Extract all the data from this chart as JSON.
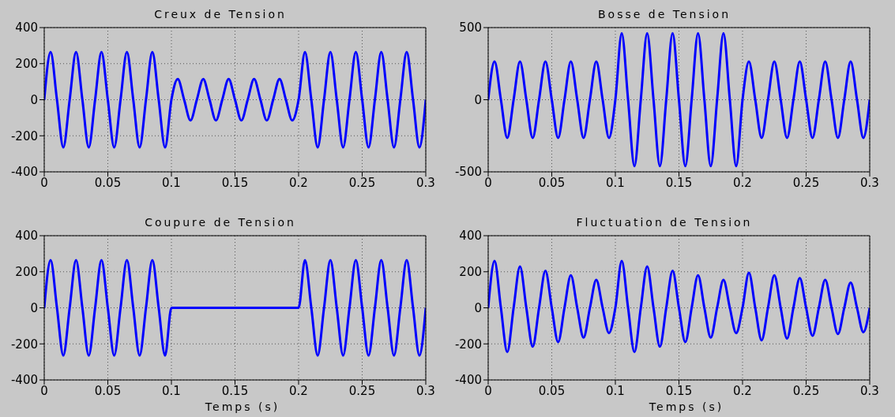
{
  "chart_data": [
    {
      "type": "line",
      "title": "Creux de Tension",
      "x": [
        0,
        0.005,
        0.01,
        0.015,
        0.02,
        0.025,
        0.03,
        0.035,
        0.04,
        0.045,
        0.05,
        0.055,
        0.06,
        0.065,
        0.07,
        0.075,
        0.08,
        0.085,
        0.09,
        0.095,
        0.1,
        0.105,
        0.11,
        0.115,
        0.12,
        0.125,
        0.13,
        0.135,
        0.14,
        0.145,
        0.15,
        0.155,
        0.16,
        0.165,
        0.17,
        0.175,
        0.18,
        0.185,
        0.19,
        0.195,
        0.2,
        0.205,
        0.21,
        0.215,
        0.22,
        0.225,
        0.23,
        0.235,
        0.24,
        0.245,
        0.25,
        0.255,
        0.26,
        0.265,
        0.27,
        0.275,
        0.28,
        0.285,
        0.29,
        0.295,
        0.3
      ],
      "values": [
        0,
        265,
        0,
        -265,
        0,
        265,
        0,
        -265,
        0,
        265,
        0,
        -265,
        0,
        265,
        0,
        -265,
        0,
        265,
        0,
        -265,
        0,
        115,
        0,
        -115,
        0,
        115,
        0,
        -115,
        0,
        115,
        0,
        -115,
        0,
        115,
        0,
        -115,
        0,
        115,
        0,
        -115,
        0,
        265,
        0,
        -265,
        0,
        265,
        0,
        -265,
        0,
        265,
        0,
        -265,
        0,
        265,
        0,
        -265,
        0,
        265,
        0,
        -265,
        0
      ],
      "color": "#0000ff",
      "xlim": [
        0,
        0.3
      ],
      "xticks": [
        0,
        0.05,
        0.1,
        0.15,
        0.2,
        0.25,
        0.3
      ],
      "ylim": [
        -400,
        400
      ],
      "yticks": [
        -400,
        -200,
        0,
        200,
        400
      ],
      "grid": true
    },
    {
      "type": "line",
      "title": "Bosse de Tension",
      "x": [
        0,
        0.005,
        0.01,
        0.015,
        0.02,
        0.025,
        0.03,
        0.035,
        0.04,
        0.045,
        0.05,
        0.055,
        0.06,
        0.065,
        0.07,
        0.075,
        0.08,
        0.085,
        0.09,
        0.095,
        0.1,
        0.105,
        0.11,
        0.115,
        0.12,
        0.125,
        0.13,
        0.135,
        0.14,
        0.145,
        0.15,
        0.155,
        0.16,
        0.165,
        0.17,
        0.175,
        0.18,
        0.185,
        0.19,
        0.195,
        0.2,
        0.205,
        0.21,
        0.215,
        0.22,
        0.225,
        0.23,
        0.235,
        0.24,
        0.245,
        0.25,
        0.255,
        0.26,
        0.265,
        0.27,
        0.275,
        0.28,
        0.285,
        0.29,
        0.295,
        0.3
      ],
      "values": [
        0,
        265,
        0,
        -265,
        0,
        265,
        0,
        -265,
        0,
        265,
        0,
        -265,
        0,
        265,
        0,
        -265,
        0,
        265,
        0,
        -265,
        0,
        460,
        0,
        -460,
        0,
        460,
        0,
        -460,
        0,
        460,
        0,
        -460,
        0,
        460,
        0,
        -460,
        0,
        460,
        0,
        -460,
        0,
        265,
        0,
        -265,
        0,
        265,
        0,
        -265,
        0,
        265,
        0,
        -265,
        0,
        265,
        0,
        -265,
        0,
        265,
        0,
        -265,
        0
      ],
      "color": "#0000ff",
      "xlim": [
        0,
        0.3
      ],
      "xticks": [
        0,
        0.05,
        0.1,
        0.15,
        0.2,
        0.25,
        0.3
      ],
      "ylim": [
        -500,
        500
      ],
      "yticks": [
        -500,
        0,
        500
      ],
      "grid": true
    },
    {
      "type": "line",
      "title": "Coupure de Tension",
      "xlabel": "Temps (s)",
      "x": [
        0,
        0.005,
        0.01,
        0.015,
        0.02,
        0.025,
        0.03,
        0.035,
        0.04,
        0.045,
        0.05,
        0.055,
        0.06,
        0.065,
        0.07,
        0.075,
        0.08,
        0.085,
        0.09,
        0.095,
        0.1,
        0.105,
        0.11,
        0.115,
        0.12,
        0.125,
        0.13,
        0.135,
        0.14,
        0.145,
        0.15,
        0.155,
        0.16,
        0.165,
        0.17,
        0.175,
        0.18,
        0.185,
        0.19,
        0.195,
        0.2,
        0.205,
        0.21,
        0.215,
        0.22,
        0.225,
        0.23,
        0.235,
        0.24,
        0.245,
        0.25,
        0.255,
        0.26,
        0.265,
        0.27,
        0.275,
        0.28,
        0.285,
        0.29,
        0.295,
        0.3
      ],
      "values": [
        0,
        265,
        0,
        -265,
        0,
        265,
        0,
        -265,
        0,
        265,
        0,
        -265,
        0,
        265,
        0,
        -265,
        0,
        265,
        0,
        -265,
        0,
        0,
        0,
        0,
        0,
        0,
        0,
        0,
        0,
        0,
        0,
        0,
        0,
        0,
        0,
        0,
        0,
        0,
        0,
        0,
        0,
        265,
        0,
        -265,
        0,
        265,
        0,
        -265,
        0,
        265,
        0,
        -265,
        0,
        265,
        0,
        -265,
        0,
        265,
        0,
        -265,
        0
      ],
      "color": "#0000ff",
      "xlim": [
        0,
        0.3
      ],
      "xticks": [
        0,
        0.05,
        0.1,
        0.15,
        0.2,
        0.25,
        0.3
      ],
      "ylim": [
        -400,
        400
      ],
      "yticks": [
        -400,
        -200,
        0,
        200,
        400
      ],
      "grid": true
    },
    {
      "type": "line",
      "title": "Fluctuation de Tension",
      "xlabel": "Temps (s)",
      "x": [
        0,
        0.005,
        0.01,
        0.015,
        0.02,
        0.025,
        0.03,
        0.035,
        0.04,
        0.045,
        0.05,
        0.055,
        0.06,
        0.065,
        0.07,
        0.075,
        0.08,
        0.085,
        0.09,
        0.095,
        0.1,
        0.105,
        0.11,
        0.115,
        0.12,
        0.125,
        0.13,
        0.135,
        0.14,
        0.145,
        0.15,
        0.155,
        0.16,
        0.165,
        0.17,
        0.175,
        0.18,
        0.185,
        0.19,
        0.195,
        0.2,
        0.205,
        0.21,
        0.215,
        0.22,
        0.225,
        0.23,
        0.235,
        0.24,
        0.245,
        0.25,
        0.255,
        0.26,
        0.265,
        0.27,
        0.275,
        0.28,
        0.285,
        0.29,
        0.295,
        0.3
      ],
      "values": [
        0,
        260,
        0,
        -245,
        0,
        230,
        0,
        -215,
        0,
        205,
        0,
        -190,
        0,
        180,
        0,
        -165,
        0,
        155,
        0,
        -140,
        0,
        260,
        0,
        -245,
        0,
        230,
        0,
        -215,
        0,
        205,
        0,
        -190,
        0,
        180,
        0,
        -165,
        0,
        155,
        0,
        -140,
        0,
        195,
        0,
        -180,
        0,
        180,
        0,
        -170,
        0,
        165,
        0,
        -155,
        0,
        155,
        0,
        -145,
        0,
        140,
        0,
        -135,
        0
      ],
      "color": "#0000ff",
      "xlim": [
        0,
        0.3
      ],
      "xticks": [
        0,
        0.05,
        0.1,
        0.15,
        0.2,
        0.25,
        0.3
      ],
      "ylim": [
        -400,
        400
      ],
      "yticks": [
        -400,
        -200,
        0,
        200,
        400
      ],
      "grid": true
    }
  ]
}
